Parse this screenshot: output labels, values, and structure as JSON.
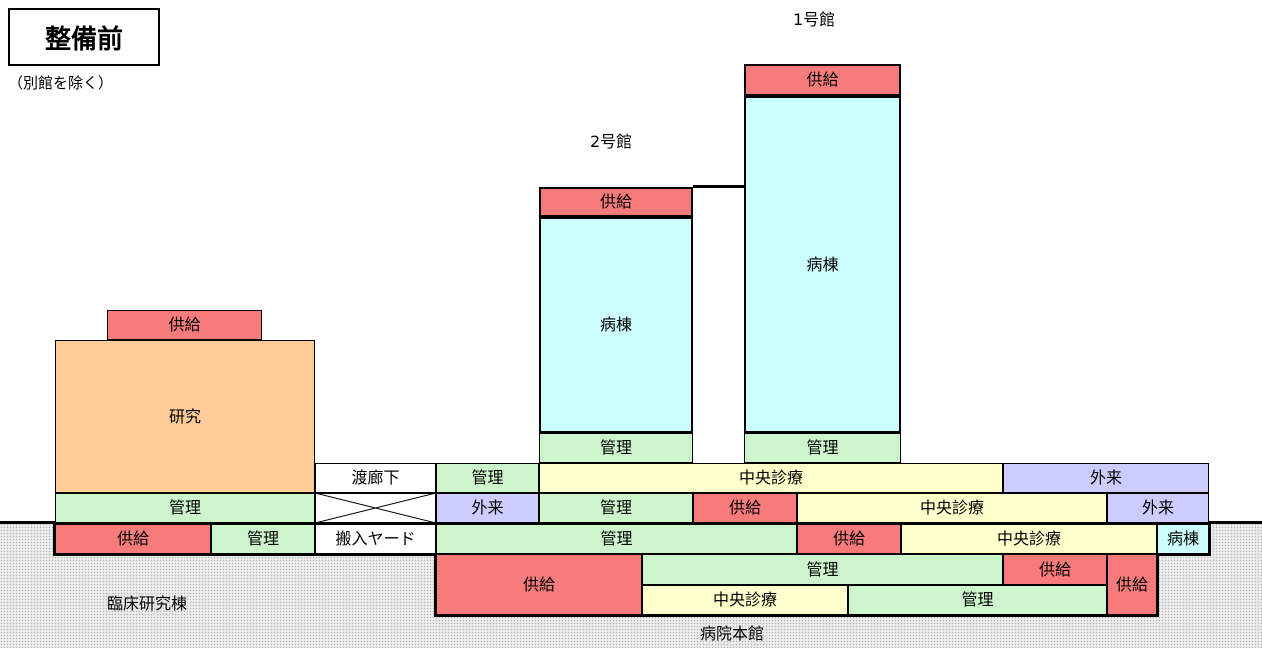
{
  "title": "整備前",
  "subtitle": "（別館を除く）",
  "colors": {
    "supply": "#f77b7b",
    "ward": "#ccffff",
    "admin": "#ccf5cc",
    "central": "#ffffcc",
    "outpatient": "#ccccff",
    "research": "#ffcc99",
    "ground": "#ececec"
  },
  "buildings": {
    "clinical_research": {
      "name": "臨床研究棟",
      "supply_top": "供給",
      "research": "研究",
      "admin": "管理",
      "b_supply": "供給",
      "b_admin": "管理"
    },
    "corridor": {
      "label": "渡廊下",
      "yard": "搬入ヤード"
    },
    "building2": {
      "name": "2号館",
      "supply": "供給",
      "ward": "病棟",
      "admin": "管理"
    },
    "building1": {
      "name": "1号館",
      "supply": "供給",
      "ward": "病棟",
      "admin": "管理"
    },
    "main": {
      "name": "病院本館",
      "f2_admin": "管理",
      "f2_central": "中央診療",
      "f2_outpatient": "外来",
      "f1_outpatient": "外来",
      "f1_admin": "管理",
      "f1_supply": "供給",
      "f1_central": "中央診療",
      "f1_outpatient2": "外来",
      "b1_admin": "管理",
      "b1_supply": "供給",
      "b1_central": "中央診療",
      "b1_ward": "病棟",
      "b2_supply": "供給",
      "b2_admin": "管理",
      "b2_supply2": "供給",
      "b2_supply3": "供給",
      "b3_central": "中央診療",
      "b3_admin": "管理"
    }
  }
}
